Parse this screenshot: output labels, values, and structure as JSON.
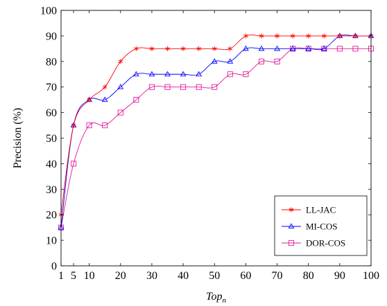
{
  "chart_data": {
    "type": "line",
    "xlabel_base": "Top",
    "xlabel_sub": "n",
    "ylabel": "Precision (%)",
    "xlim": [
      1,
      100
    ],
    "ylim": [
      0,
      100
    ],
    "xticks": [
      1,
      5,
      10,
      20,
      30,
      40,
      50,
      60,
      70,
      80,
      90,
      100
    ],
    "yticks": [
      0,
      10,
      20,
      30,
      40,
      50,
      60,
      70,
      80,
      90,
      100
    ],
    "grid": false,
    "legend_position": "bottom-right",
    "x": [
      1,
      5,
      10,
      15,
      20,
      25,
      30,
      35,
      40,
      45,
      50,
      55,
      60,
      65,
      70,
      75,
      80,
      85,
      90,
      95,
      100
    ],
    "series": [
      {
        "name": "LL-JAC",
        "color": "#ff0000",
        "marker": "star",
        "values": [
          20,
          55,
          65,
          70,
          80,
          85,
          85,
          85,
          85,
          85,
          85,
          85,
          90,
          90,
          90,
          90,
          90,
          90,
          90,
          90,
          90
        ]
      },
      {
        "name": "MI-COS",
        "color": "#0000ff",
        "marker": "triangle",
        "values": [
          15,
          55,
          65,
          65,
          70,
          75,
          75,
          75,
          75,
          75,
          80,
          80,
          85,
          85,
          85,
          85,
          85,
          85,
          90,
          90,
          90
        ]
      },
      {
        "name": "DOR-COS",
        "color": "#e0199a",
        "marker": "square",
        "values": [
          15,
          40,
          55,
          55,
          60,
          65,
          70,
          70,
          70,
          70,
          70,
          75,
          75,
          80,
          80,
          85,
          85,
          85,
          85,
          85,
          85
        ]
      }
    ]
  }
}
